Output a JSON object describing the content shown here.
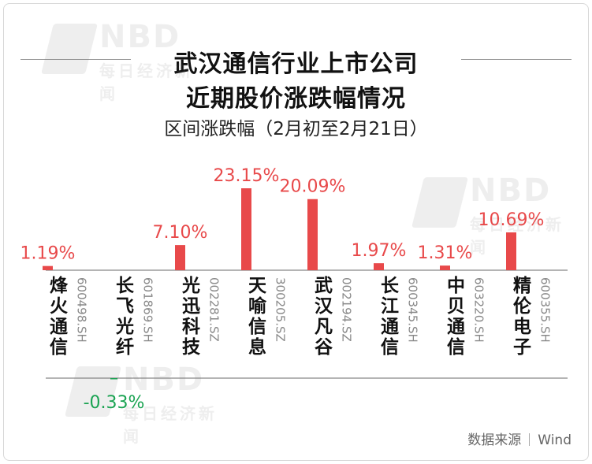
{
  "title_line1": "武汉通信行业上市公司",
  "title_line2": "近期股价涨跌幅情况",
  "subtitle": "区间涨跌幅（2月初至2月21日）",
  "source_label": "数据来源",
  "source_name": "Wind",
  "watermark_text": "NBD",
  "watermark_cn": "每日经济新闻",
  "colors": {
    "positive": "#e8494a",
    "negative": "#1aa352",
    "name_text": "#111111",
    "code_text": "#888888"
  },
  "chart_data": {
    "type": "bar",
    "title": "武汉通信行业上市公司近期股价涨跌幅情况",
    "subtitle": "区间涨跌幅（2月初至2月21日）",
    "unit": "%",
    "categories": [
      "烽火通信",
      "长飞光纤",
      "光迅科技",
      "天喻信息",
      "武汉凡谷",
      "长江通信",
      "中贝通信",
      "精伦电子"
    ],
    "codes": [
      "600498.SH",
      "601869.SH",
      "002281.SZ",
      "300205.SZ",
      "002194.SZ",
      "600345.SH",
      "603220.SH",
      "600355.SH"
    ],
    "values": [
      1.19,
      -0.33,
      7.1,
      23.15,
      20.09,
      1.97,
      1.31,
      10.69
    ],
    "value_labels": [
      "1.19%",
      "-0.33%",
      "7.10%",
      "23.15%",
      "20.09%",
      "1.97%",
      "1.31%",
      "10.69%"
    ],
    "ylim": [
      -0.33,
      23.15
    ],
    "grid": false,
    "legend": "none"
  }
}
